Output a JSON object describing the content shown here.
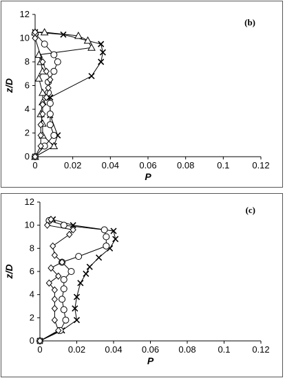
{
  "chart_data": [
    {
      "type": "line",
      "panel_label": "(b)",
      "xlabel": "P",
      "ylabel": "z/D",
      "xlim": [
        0,
        0.12
      ],
      "ylim": [
        0,
        12
      ],
      "xticks": [
        "0",
        "0.02",
        "0.04",
        "0.06",
        "0.08",
        "0.1",
        "0.12"
      ],
      "yticks": [
        "0",
        "2",
        "4",
        "6",
        "8",
        "10",
        "12"
      ],
      "grid": false,
      "series": [
        {
          "marker": "x",
          "points": [
            [
              0.0,
              0.0
            ],
            [
              0.01,
              0.9
            ],
            [
              0.012,
              1.8
            ],
            [
              0.008,
              3.5
            ],
            [
              0.008,
              5.0
            ],
            [
              0.03,
              6.8
            ],
            [
              0.035,
              8.0
            ],
            [
              0.036,
              8.8
            ],
            [
              0.035,
              9.5
            ],
            [
              0.015,
              10.3
            ],
            [
              0.0,
              10.5
            ]
          ]
        },
        {
          "marker": "triangle",
          "points": [
            [
              0.0,
              0.0
            ],
            [
              0.01,
              0.9
            ],
            [
              0.004,
              1.8
            ],
            [
              0.004,
              2.8
            ],
            [
              0.003,
              3.6
            ],
            [
              0.004,
              4.6
            ],
            [
              0.004,
              5.4
            ],
            [
              0.002,
              6.6
            ],
            [
              0.004,
              7.2
            ],
            [
              0.003,
              8.0
            ],
            [
              0.002,
              8.6
            ],
            [
              0.03,
              9.2
            ],
            [
              0.028,
              9.8
            ],
            [
              0.023,
              10.2
            ],
            [
              0.005,
              10.5
            ],
            [
              0.0,
              10.5
            ]
          ]
        },
        {
          "marker": "circle",
          "points": [
            [
              0.0,
              0.0
            ],
            [
              0.005,
              0.9
            ],
            [
              0.01,
              1.8
            ],
            [
              0.008,
              2.7
            ],
            [
              0.008,
              3.6
            ],
            [
              0.008,
              4.5
            ],
            [
              0.007,
              5.4
            ],
            [
              0.007,
              6.3
            ],
            [
              0.01,
              7.2
            ],
            [
              0.012,
              8.0
            ],
            [
              0.01,
              8.6
            ],
            [
              0.005,
              9.5
            ],
            [
              0.0,
              10.4
            ]
          ]
        },
        {
          "marker": "diamond",
          "points": [
            [
              0.0,
              0.0
            ],
            [
              0.003,
              0.9
            ],
            [
              0.003,
              1.8
            ],
            [
              0.003,
              2.7
            ],
            [
              0.004,
              3.6
            ],
            [
              0.004,
              4.4
            ],
            [
              0.006,
              5.0
            ],
            [
              0.007,
              5.8
            ],
            [
              0.008,
              6.5
            ],
            [
              0.006,
              7.2
            ],
            [
              0.004,
              8.0
            ],
            [
              0.0,
              10.0
            ],
            [
              0.0,
              10.5
            ]
          ]
        }
      ]
    },
    {
      "type": "line",
      "panel_label": "(c)",
      "xlabel": "P",
      "ylabel": "z/D",
      "xlim": [
        0,
        0.12
      ],
      "ylim": [
        0,
        12
      ],
      "xticks": [
        "0",
        "0.02",
        "0.04",
        "0.06",
        "0.08",
        "0.1",
        "0.12"
      ],
      "yticks": [
        "0",
        "2",
        "4",
        "6",
        "8",
        "10",
        "12"
      ],
      "grid": false,
      "series": [
        {
          "marker": "x",
          "points": [
            [
              0.0,
              0.0
            ],
            [
              0.012,
              0.9
            ],
            [
              0.02,
              1.8
            ],
            [
              0.019,
              2.8
            ],
            [
              0.02,
              3.8
            ],
            [
              0.022,
              5.0
            ],
            [
              0.025,
              5.8
            ],
            [
              0.027,
              6.4
            ],
            [
              0.032,
              7.2
            ],
            [
              0.038,
              8.0
            ],
            [
              0.041,
              8.8
            ],
            [
              0.04,
              9.5
            ],
            [
              0.018,
              10.0
            ],
            [
              0.007,
              10.5
            ]
          ]
        },
        {
          "marker": "circle",
          "points": [
            [
              0.0,
              0.0
            ],
            [
              0.011,
              0.9
            ],
            [
              0.014,
              1.8
            ],
            [
              0.013,
              2.7
            ],
            [
              0.012,
              3.6
            ],
            [
              0.013,
              4.5
            ],
            [
              0.013,
              5.3
            ],
            [
              0.017,
              6.0
            ],
            [
              0.012,
              6.8
            ],
            [
              0.021,
              7.3
            ],
            [
              0.036,
              8.2
            ],
            [
              0.036,
              9.0
            ],
            [
              0.035,
              9.6
            ],
            [
              0.013,
              10.0
            ],
            [
              0.005,
              10.4
            ]
          ]
        },
        {
          "marker": "diamond",
          "points": [
            [
              0.0,
              0.0
            ],
            [
              0.01,
              0.9
            ],
            [
              0.008,
              1.8
            ],
            [
              0.008,
              2.8
            ],
            [
              0.008,
              3.6
            ],
            [
              0.008,
              4.4
            ],
            [
              0.005,
              5.0
            ],
            [
              0.01,
              5.6
            ],
            [
              0.006,
              6.3
            ],
            [
              0.012,
              6.8
            ],
            [
              0.008,
              7.4
            ],
            [
              0.007,
              8.2
            ],
            [
              0.016,
              9.2
            ],
            [
              0.018,
              9.6
            ],
            [
              0.004,
              10.0
            ],
            [
              0.006,
              10.5
            ]
          ]
        }
      ]
    }
  ]
}
